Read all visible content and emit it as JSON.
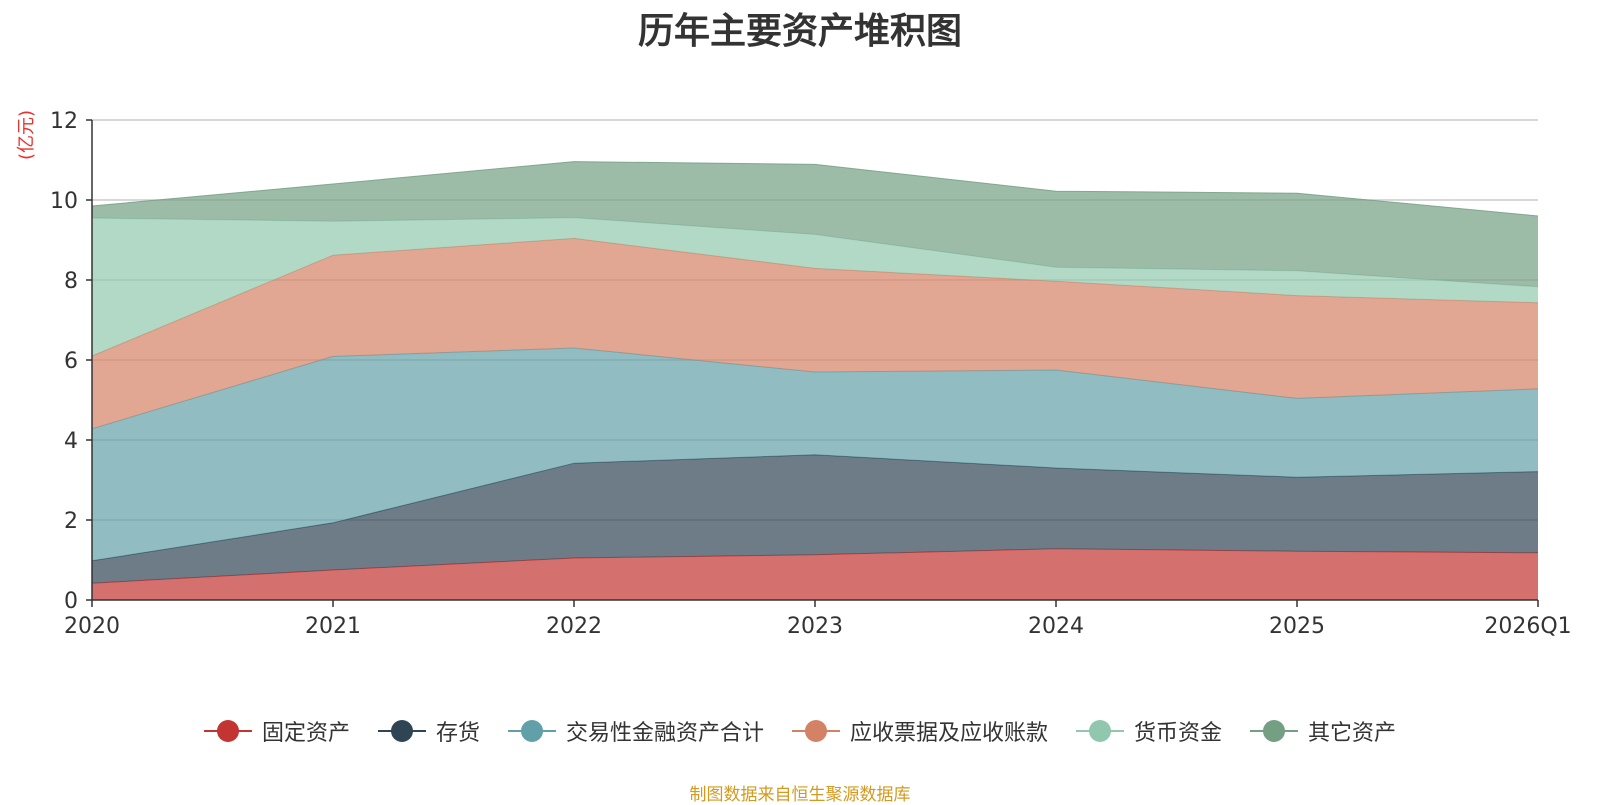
{
  "chart_data": {
    "type": "area",
    "stacked": true,
    "title": "历年主要资产堆积图",
    "ylabel": "(亿元)",
    "xlabel": "",
    "ylim": [
      0,
      12
    ],
    "yticks": [
      0,
      2,
      4,
      6,
      8,
      10,
      12
    ],
    "categories": [
      "2020",
      "2021",
      "2022",
      "2023",
      "2024",
      "2025",
      "2026Q1"
    ],
    "series": [
      {
        "name": "固定资产",
        "color": "#c23531",
        "values": [
          0.42,
          0.75,
          1.05,
          1.13,
          1.28,
          1.22,
          1.18
        ]
      },
      {
        "name": "存货",
        "color": "#2f4554",
        "values": [
          0.56,
          1.18,
          2.37,
          2.5,
          2.02,
          1.85,
          2.03
        ]
      },
      {
        "name": "交易性金融资产合计",
        "color": "#61a0a8",
        "values": [
          3.3,
          4.16,
          2.88,
          2.07,
          2.45,
          1.97,
          2.07
        ]
      },
      {
        "name": "应收票据及应收账款",
        "color": "#d48265",
        "values": [
          1.82,
          2.53,
          2.74,
          2.59,
          2.22,
          2.57,
          2.15
        ]
      },
      {
        "name": "货币资金",
        "color": "#91c7ae",
        "values": [
          3.45,
          0.85,
          0.52,
          0.85,
          0.35,
          0.62,
          0.4
        ]
      },
      {
        "name": "其它资产",
        "color": "#749f83",
        "values": [
          0.3,
          0.93,
          1.4,
          1.75,
          1.9,
          1.94,
          1.77
        ]
      }
    ],
    "legend_position": "bottom",
    "grid": true
  },
  "source_note": "制图数据来自恒生聚源数据库"
}
